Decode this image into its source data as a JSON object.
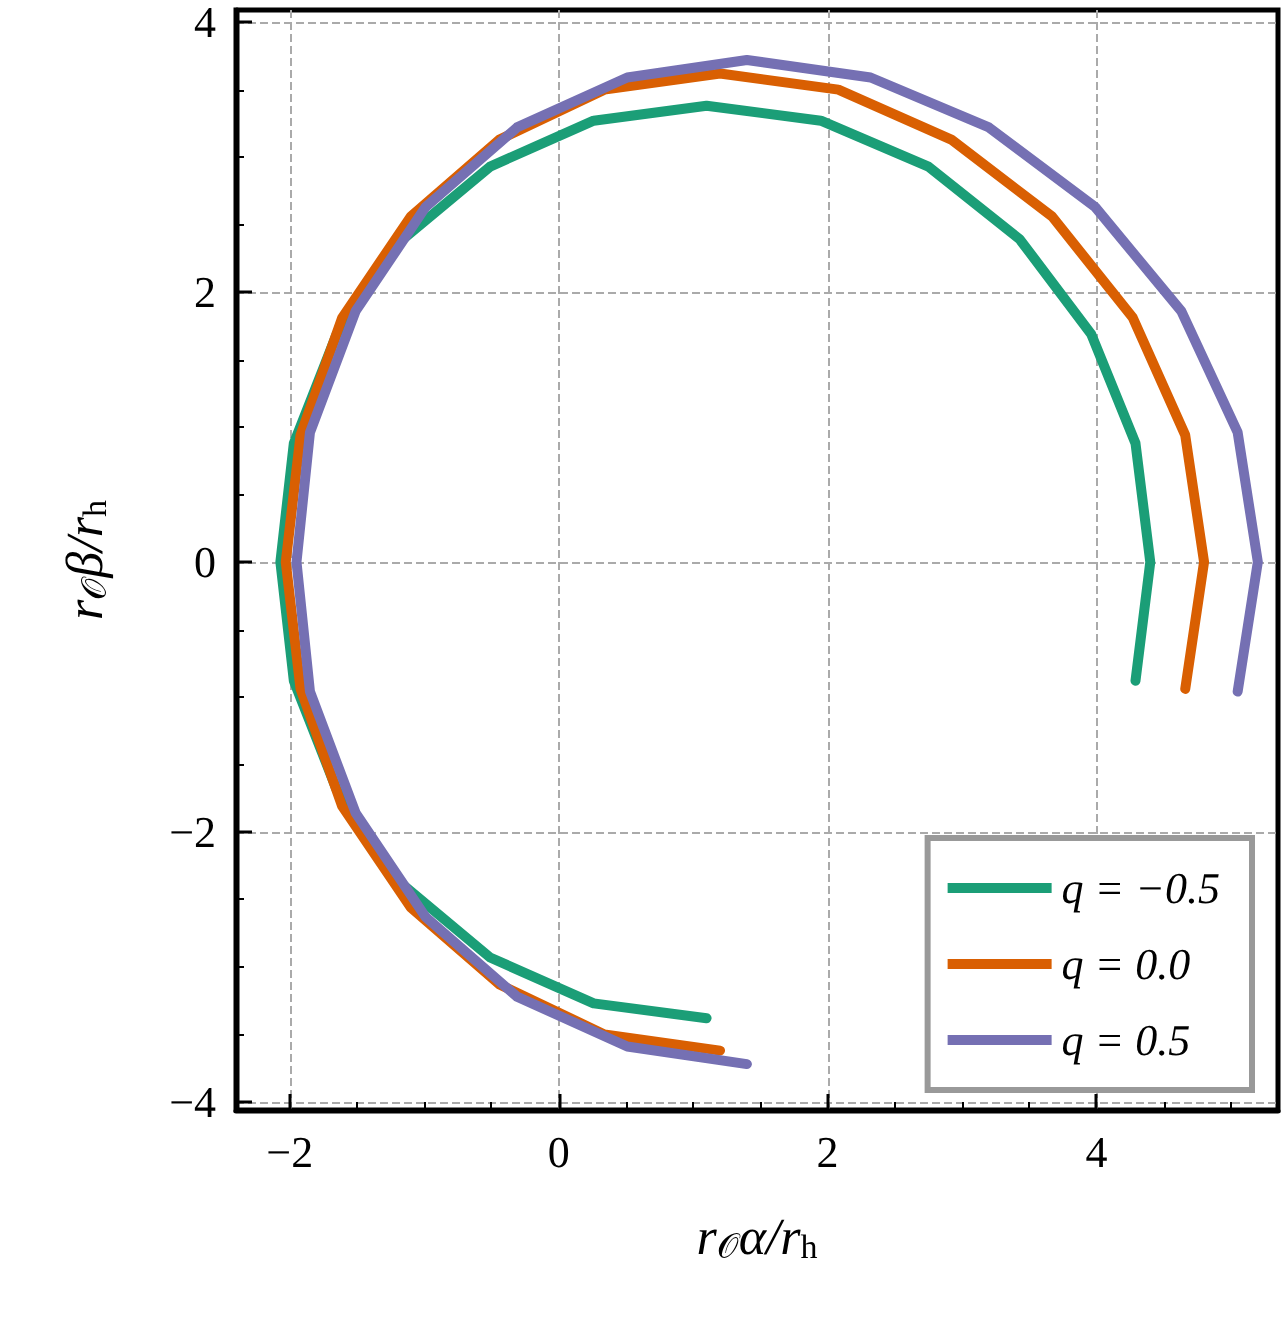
{
  "chart_data": {
    "type": "line",
    "xlabel": "r$_{𝒪}$α/r$_{h}$",
    "ylabel": "r$_{𝒪}$β/r$_{h}$",
    "xlim": [
      -2.4,
      5.35
    ],
    "ylim": [
      -4.06,
      4.09
    ],
    "xticks": [
      -2,
      0,
      2,
      4
    ],
    "yticks": [
      -4,
      -2,
      0,
      2,
      4
    ],
    "grid": true,
    "legend": "bottom right",
    "line_style": "solid",
    "marker": "none",
    "series": [
      {
        "name": "q = −0.5",
        "color": "#1b9e77",
        "x": [
          4.4,
          4.29,
          3.96,
          3.43,
          2.75,
          1.95,
          1.1,
          0.26,
          -0.51,
          -1.16,
          -1.65,
          -1.97,
          -2.07,
          -1.97,
          -1.65,
          -1.16,
          -0.51,
          0.26,
          1.1,
          1.95,
          2.75,
          3.43,
          3.96,
          4.29,
          4.4
        ],
        "values": [
          0,
          0.88,
          1.69,
          2.39,
          2.93,
          3.27,
          3.38,
          3.27,
          2.93,
          2.39,
          1.69,
          0.88,
          0,
          -0.88,
          -1.69,
          -2.39,
          -2.93,
          -3.27,
          -3.38,
          null,
          null,
          null,
          null,
          -0.88,
          0
        ]
      },
      {
        "name": "q = 0.0",
        "color": "#d95f02",
        "x": [
          4.8,
          4.66,
          4.27,
          3.67,
          2.92,
          2.08,
          1.2,
          0.34,
          -0.44,
          -1.1,
          -1.61,
          -1.92,
          -2.03,
          -1.92,
          -1.61,
          -1.1,
          -0.44,
          0.34,
          1.2,
          2.08,
          2.92,
          3.67,
          4.27,
          4.66,
          4.8
        ],
        "values": [
          0,
          0.94,
          1.81,
          2.56,
          3.13,
          3.5,
          3.62,
          3.5,
          3.13,
          2.56,
          1.81,
          0.94,
          0,
          -0.94,
          -1.81,
          -2.56,
          -3.13,
          -3.5,
          -3.62,
          null,
          null,
          null,
          null,
          -0.94,
          0
        ]
      },
      {
        "name": "q = 0.5",
        "color": "#7570b3",
        "x": [
          5.2,
          5.05,
          4.63,
          3.99,
          3.2,
          2.32,
          1.4,
          0.51,
          -0.31,
          -0.99,
          -1.51,
          -1.85,
          -1.95,
          -1.85,
          -1.51,
          -0.99,
          -0.31,
          0.51,
          1.4,
          2.32,
          3.2,
          3.99,
          4.63,
          5.05,
          5.2
        ],
        "values": [
          0,
          0.96,
          1.86,
          2.63,
          3.22,
          3.59,
          3.72,
          3.59,
          3.22,
          2.63,
          1.86,
          0.96,
          0,
          -0.96,
          -1.86,
          -2.63,
          -3.22,
          -3.59,
          -3.72,
          null,
          null,
          null,
          null,
          -0.96,
          0
        ]
      }
    ]
  }
}
